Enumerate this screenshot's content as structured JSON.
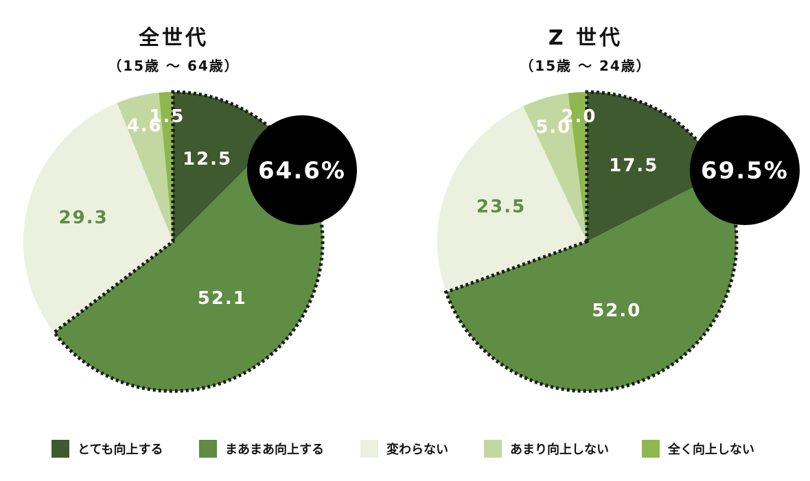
{
  "chart_data": [
    {
      "type": "pie",
      "title": "全世代",
      "subtitle": "（15歳 〜 64歳）",
      "categories": [
        "とても向上する",
        "まあまあ向上する",
        "変わらない",
        "あまり向上しない",
        "全く向上しない"
      ],
      "values": [
        12.5,
        52.1,
        29.3,
        4.6,
        1.5
      ],
      "labels": [
        "12.5",
        "52.1",
        "29.3",
        "4.6",
        "1.5"
      ],
      "highlight_total": "64.6%"
    },
    {
      "type": "pie",
      "title": "Z 世代",
      "subtitle": "（15歳 〜 24歳）",
      "categories": [
        "とても向上する",
        "まあまあ向上する",
        "変わらない",
        "あまり向上しない",
        "全く向上しない"
      ],
      "values": [
        17.5,
        52.0,
        23.5,
        5.0,
        2.0
      ],
      "labels": [
        "17.5",
        "52.0",
        "23.5",
        "5.0",
        "2.0"
      ],
      "highlight_total": "69.5%"
    }
  ],
  "colors": [
    "#3e5a2e",
    "#5f8d43",
    "#ebf1de",
    "#c3d8a0",
    "#8fb74f"
  ],
  "label_colors": [
    "#ffffff",
    "#ffffff",
    "#5f8d43",
    "#ffffff",
    "#ffffff"
  ],
  "legend": [
    {
      "label": "とても向上する",
      "color": "#3e5a2e"
    },
    {
      "label": "まあまあ向上する",
      "color": "#5f8d43"
    },
    {
      "label": "変わらない",
      "color": "#ebf1de"
    },
    {
      "label": "あまり向上しない",
      "color": "#c3d8a0"
    },
    {
      "label": "全く向上しない",
      "color": "#8fb74f"
    }
  ]
}
